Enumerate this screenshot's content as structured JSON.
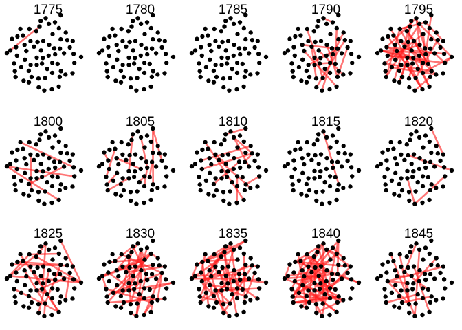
{
  "chart_data": {
    "type": "network-small-multiples",
    "layout": {
      "rows": 3,
      "cols": 5
    },
    "panels": [
      {
        "title": "1775"
      },
      {
        "title": "1780"
      },
      {
        "title": "1785"
      },
      {
        "title": "1790"
      },
      {
        "title": "1795"
      },
      {
        "title": "1800"
      },
      {
        "title": "1805"
      },
      {
        "title": "1810"
      },
      {
        "title": "1815"
      },
      {
        "title": "1820"
      },
      {
        "title": "1825"
      },
      {
        "title": "1830"
      },
      {
        "title": "1835"
      },
      {
        "title": "1840"
      },
      {
        "title": "1845"
      }
    ],
    "node_color": "#000000",
    "edge_color": "#ff2020"
  }
}
